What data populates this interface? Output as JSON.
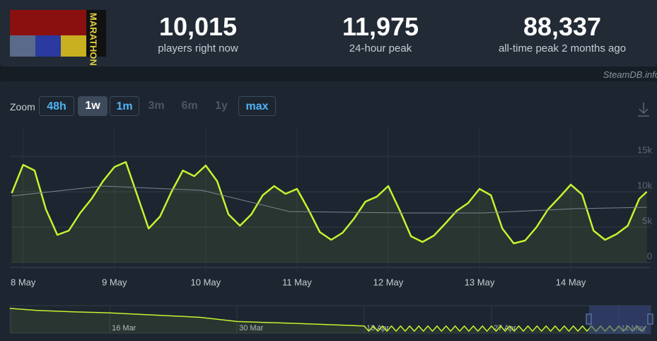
{
  "header": {
    "game_logo": "MARATHON",
    "stats": [
      {
        "value": "10,015",
        "label": "players right now"
      },
      {
        "value": "11,975",
        "label": "24-hour peak"
      },
      {
        "value": "88,337",
        "label": "all-time peak 2 months ago"
      }
    ],
    "source": "SteamDB.info"
  },
  "zoom": {
    "label": "Zoom",
    "options": [
      "48h",
      "1w",
      "1m",
      "3m",
      "6m",
      "1y",
      "max"
    ]
  },
  "chart_data": [
    {
      "type": "line",
      "xlim": [
        -3.3,
        165
      ],
      "xticks": [
        {
          "value": 0,
          "label": "8 May"
        },
        {
          "value": 24,
          "label": "9 May"
        },
        {
          "value": 48,
          "label": "10 May"
        },
        {
          "value": 72,
          "label": "11 May"
        },
        {
          "value": 96,
          "label": "12 May"
        },
        {
          "value": 120,
          "label": "13 May"
        },
        {
          "value": 144,
          "label": "14 May"
        }
      ],
      "ylim": [
        0,
        19000
      ],
      "yticks": [
        0,
        {
          "value": 5000,
          "label": "5k"
        },
        {
          "value": 10000,
          "label": "10k"
        },
        {
          "value": 15000,
          "label": "15k"
        }
      ],
      "grid": true,
      "series": [
        {
          "color": "#c3f42f",
          "fill": true,
          "x": [
            -3,
            0,
            3,
            6,
            9,
            12,
            15,
            18,
            21,
            24,
            27,
            30,
            33,
            36,
            39,
            42,
            45,
            48,
            51,
            54,
            57,
            60,
            63,
            66,
            69,
            72,
            75,
            78,
            81,
            84,
            87,
            90,
            93,
            96,
            99,
            102,
            105,
            108,
            111,
            114,
            117,
            120,
            123,
            126,
            129,
            132,
            135,
            138,
            141,
            144,
            147,
            150,
            153,
            156,
            159,
            162,
            164
          ],
          "values": [
            9800,
            13800,
            13000,
            7500,
            3900,
            4500,
            7000,
            9000,
            11500,
            13500,
            14200,
            9500,
            4800,
            6500,
            10000,
            13000,
            12200,
            13700,
            11500,
            6800,
            5200,
            6800,
            9500,
            10800,
            9700,
            10400,
            7500,
            4300,
            3200,
            4200,
            6200,
            8600,
            9300,
            10800,
            7400,
            3700,
            2900,
            3800,
            5500,
            7300,
            8400,
            10400,
            9500,
            4800,
            2700,
            3100,
            5000,
            7500,
            9200,
            11000,
            9600,
            4500,
            3200,
            4000,
            5200,
            9000,
            10000
          ]
        },
        {
          "color": "#7d8590",
          "x": [
            -3,
            21,
            47,
            70,
            100,
            121,
            145,
            164
          ],
          "values": [
            9400,
            10800,
            10200,
            7200,
            7000,
            7000,
            7600,
            7800
          ]
        }
      ]
    },
    {
      "type": "line",
      "xlim": [
        -10.9,
        59.5
      ],
      "xticks": [
        {
          "value": 0,
          "label": "16 Mar"
        },
        {
          "value": 14,
          "label": "30 Mar"
        },
        {
          "value": 28,
          "label": "13 Apr"
        },
        {
          "value": 42,
          "label": "27 Apr"
        },
        {
          "value": 56,
          "label": "11 May"
        }
      ],
      "ylim": [
        0,
        40000
      ],
      "series": [
        {
          "color": "#c3f42f",
          "fill": true,
          "x": [
            -11,
            -8,
            -4,
            0,
            4,
            7,
            10,
            14,
            21,
            27,
            28,
            28.5,
            29,
            29.5,
            30,
            30.5,
            31,
            31.5,
            32,
            32.5,
            33,
            33.5,
            34,
            34.5,
            35,
            35.5,
            36,
            36.5,
            37,
            37.5,
            38,
            38.5,
            39,
            39.5,
            40,
            40.5,
            41,
            41.5,
            42,
            42.5,
            43,
            43.5,
            44,
            44.5,
            45,
            45.5,
            46,
            46.5,
            47,
            47.5,
            48,
            48.5,
            49,
            49.5,
            50,
            50.5,
            51,
            51.5,
            52,
            52.5,
            53,
            53.5,
            54,
            54.5,
            55,
            55.5,
            56,
            56.5,
            57,
            57.5,
            58,
            58.5,
            59
          ],
          "values": [
            36000,
            33000,
            31000,
            29500,
            27000,
            25000,
            23000,
            17000,
            14000,
            11000,
            10500,
            3000,
            10500,
            3000,
            10500,
            3000,
            10500,
            3000,
            10500,
            3000,
            10500,
            3000,
            10500,
            3000,
            10500,
            3000,
            10500,
            3000,
            10500,
            3000,
            10500,
            3000,
            10500,
            3000,
            10500,
            3000,
            10500,
            3000,
            10500,
            3000,
            10500,
            3000,
            10500,
            3000,
            10500,
            3000,
            10500,
            3000,
            10500,
            3000,
            10500,
            3000,
            10500,
            3000,
            10500,
            3000,
            10500,
            3000,
            10500,
            3000,
            10500,
            3000,
            10500,
            3000,
            10500,
            3000,
            10500,
            3000,
            10500,
            3000,
            10500,
            3000,
            10500
          ]
        }
      ]
    }
  ]
}
